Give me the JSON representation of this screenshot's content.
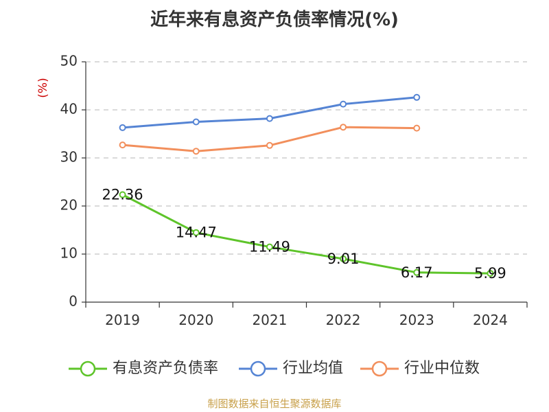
{
  "chart_data": {
    "type": "line",
    "title": "近年来有息资产负债率情况(%)",
    "unit": "(%)",
    "categories": [
      "2019",
      "2020",
      "2021",
      "2022",
      "2023",
      "2024"
    ],
    "ylim": [
      0,
      50
    ],
    "yticks": [
      0,
      10,
      20,
      30,
      40,
      50
    ],
    "grid": true,
    "legend_position": "bottom",
    "series": [
      {
        "name": "有息资产负债率",
        "color": "#5ec42a",
        "values": [
          22.36,
          14.47,
          11.49,
          9.01,
          6.17,
          5.99
        ],
        "labels": [
          "22.36",
          "14.47",
          "11.49",
          "9.01",
          "6.17",
          "5.99"
        ]
      },
      {
        "name": "行业均值",
        "color": "#5584d4",
        "values": [
          36.3,
          37.5,
          38.2,
          41.2,
          42.6,
          null
        ]
      },
      {
        "name": "行业中位数",
        "color": "#f28f5c",
        "values": [
          32.7,
          31.4,
          32.6,
          36.4,
          36.2,
          null
        ]
      }
    ],
    "source": "制图数据来自恒生聚源数据库"
  }
}
